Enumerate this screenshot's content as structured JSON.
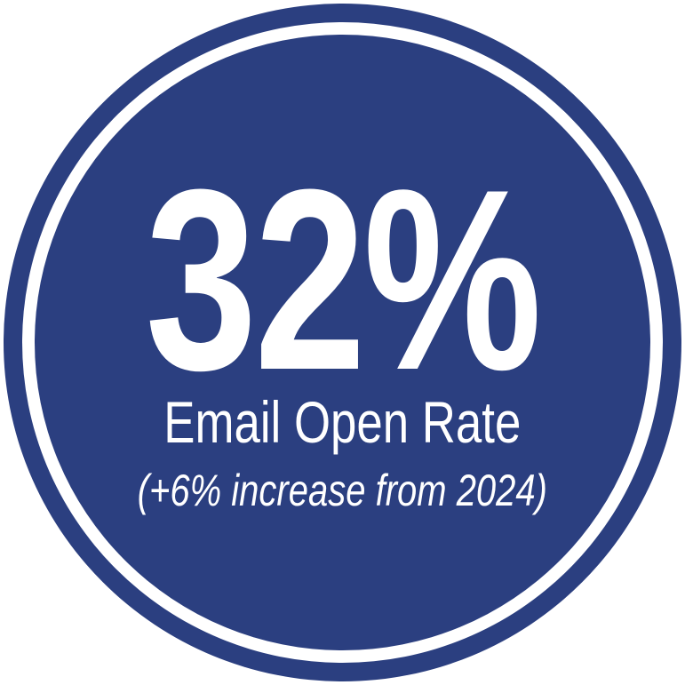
{
  "colors": {
    "circle": "#2b3f80",
    "ring": "#ffffff",
    "text": "#ffffff"
  },
  "stat": {
    "value": "32%",
    "label": "Email Open Rate",
    "note": "(+6% increase from 2024)"
  }
}
